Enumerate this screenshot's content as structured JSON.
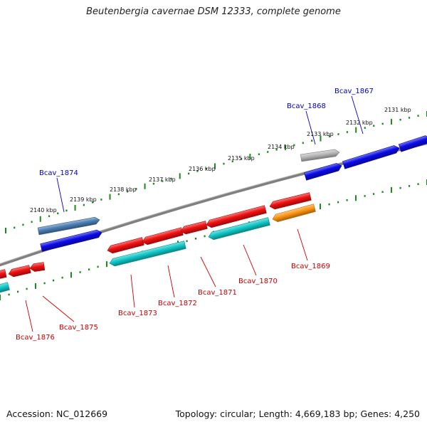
{
  "title": "Beutenbergia cavernae DSM 12333, complete genome",
  "footer": {
    "accession": "Accession: NC_012669",
    "summary": "Topology: circular; Length: 4,669,183 bp; Genes: 4,250"
  },
  "colors": {
    "backbone": "#808080",
    "ruler_ticks": "#1a8a1a",
    "forward_label": "#0000c8",
    "reverse_label": "#c80000",
    "blue_gene": "#0a0ae8",
    "steel_gene": "#4a7fb5",
    "gray_gene": "#b8b8b8",
    "red_gene": "#f01010",
    "cyan_gene": "#10c8c8",
    "orange_gene": "#ff9410"
  },
  "ruler_labels": [
    "2131 kbp",
    "2132 kbp",
    "2133 kbp",
    "2134 kbp",
    "2135 kbp",
    "2136 kbp",
    "2137 kbp",
    "2138 kbp",
    "2139 kbp",
    "2140 kbp"
  ],
  "gene_labels": {
    "forward": [
      "Bcav_1867",
      "Bcav_1868",
      "Bcav_1874"
    ],
    "reverse": [
      "Bcav_1869",
      "Bcav_1870",
      "Bcav_1871",
      "Bcav_1872",
      "Bcav_1873",
      "Bcav_1875",
      "Bcav_1876"
    ]
  }
}
